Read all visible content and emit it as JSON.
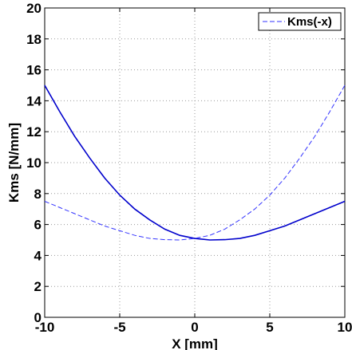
{
  "chart_data": {
    "type": "line",
    "xlabel": "X [mm]",
    "ylabel": "Kms [N/mm]",
    "xlim": [
      -10,
      10
    ],
    "ylim": [
      0,
      20
    ],
    "xticks": [
      -10,
      -5,
      0,
      5,
      10
    ],
    "yticks": [
      0,
      2,
      4,
      6,
      8,
      10,
      12,
      14,
      16,
      18,
      20
    ],
    "grid": true,
    "legend_position": "top-right",
    "series": [
      {
        "style": "solid",
        "color": "#0000cc",
        "x": [
          -10,
          -9,
          -8,
          -7,
          -6,
          -5,
          -4,
          -3,
          -2,
          -1,
          0,
          1,
          2,
          3,
          4,
          5,
          6,
          7,
          8,
          9,
          10
        ],
        "y": [
          15.0,
          13.3,
          11.7,
          10.3,
          9.0,
          7.9,
          7.0,
          6.3,
          5.7,
          5.3,
          5.1,
          5.0,
          5.02,
          5.1,
          5.3,
          5.6,
          5.9,
          6.3,
          6.7,
          7.1,
          7.5
        ]
      },
      {
        "name": "Kms(-x)",
        "style": "dashed",
        "color": "#3333ff",
        "x": [
          -10,
          -9,
          -8,
          -7,
          -6,
          -5,
          -4,
          -3,
          -2,
          -1,
          0,
          1,
          2,
          3,
          4,
          5,
          6,
          7,
          8,
          9,
          10
        ],
        "y": [
          7.5,
          7.1,
          6.7,
          6.3,
          5.9,
          5.6,
          5.3,
          5.1,
          5.02,
          5.0,
          5.1,
          5.3,
          5.7,
          6.3,
          7.0,
          7.9,
          9.0,
          10.3,
          11.7,
          13.3,
          15.0
        ]
      }
    ]
  }
}
